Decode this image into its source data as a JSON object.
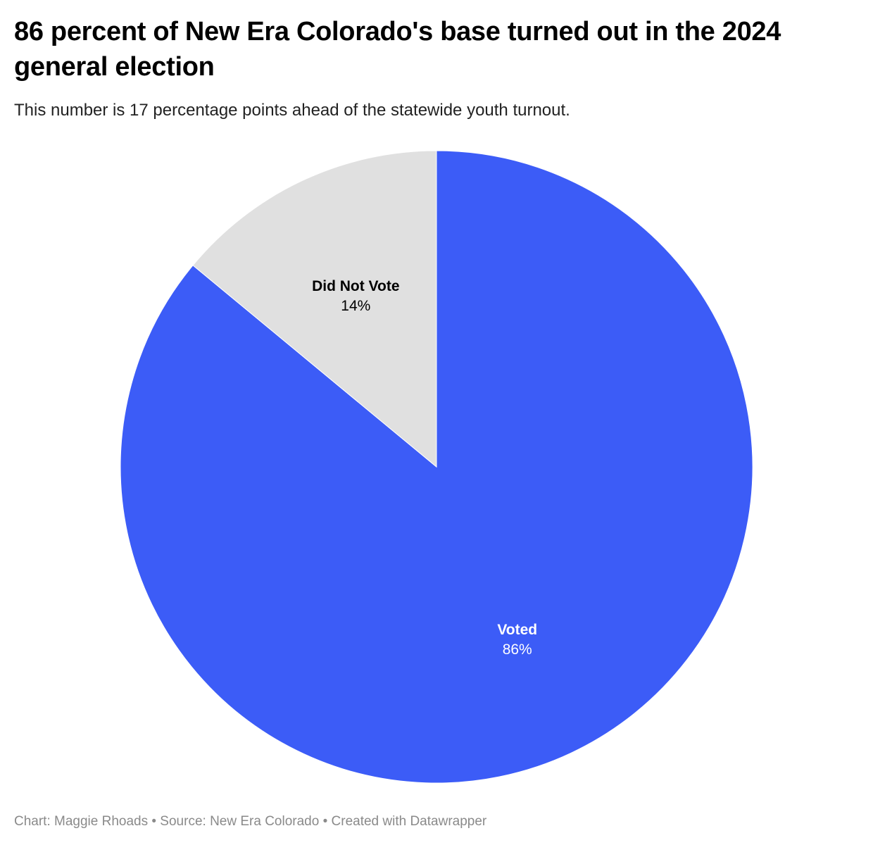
{
  "title": "86 percent of New Era Colorado's base turned out in the 2024 general election",
  "subtitle": "This number is 17 percentage points ahead of the statewide youth turnout.",
  "footer": "Chart: Maggie Rhoads • Source: New Era Colorado • Created with Datawrapper",
  "chart_data": {
    "type": "pie",
    "slices": [
      {
        "label": "Voted",
        "value": 86,
        "value_label": "86%",
        "color": "#3c5cf7",
        "label_color": "#ffffff"
      },
      {
        "label": "Did Not Vote",
        "value": 14,
        "value_label": "14%",
        "color": "#e0e0e0",
        "label_color": "#000000"
      }
    ],
    "start": "12 o'clock",
    "direction": "clockwise",
    "legend": "none",
    "labels": "inside slices"
  }
}
